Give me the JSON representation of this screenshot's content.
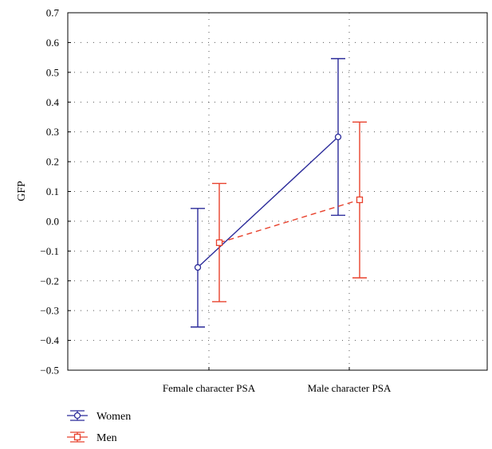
{
  "chart_data": {
    "type": "line",
    "title": "",
    "xlabel": "",
    "ylabel": "GFP",
    "ylim": [
      -0.5,
      0.7
    ],
    "yticks": [
      "0.7",
      "0.6",
      "0.5",
      "0.4",
      "0.3",
      "0.2",
      "0.1",
      "0.0",
      "−0.1",
      "−0.2",
      "−0.3",
      "−0.4",
      "−0.5"
    ],
    "ytick_values": [
      0.7,
      0.6,
      0.5,
      0.4,
      0.3,
      0.2,
      0.1,
      0.0,
      -0.1,
      -0.2,
      -0.3,
      -0.4,
      -0.5
    ],
    "categories": [
      "Female character PSA",
      "Male character PSA"
    ],
    "grid": true,
    "legend_placement": "bottom-left",
    "error_bars": true,
    "series": [
      {
        "name": "Women",
        "values": [
          -0.155,
          0.283
        ],
        "lower": [
          -0.355,
          0.02
        ],
        "upper": [
          0.043,
          0.546
        ],
        "color": "#2b2b9a",
        "marker": "circle",
        "line_style": "solid"
      },
      {
        "name": "Men",
        "values": [
          -0.072,
          0.072
        ],
        "lower": [
          -0.27,
          -0.19
        ],
        "upper": [
          0.127,
          0.333
        ],
        "color": "#e8412c",
        "marker": "square",
        "line_style": "dashed"
      }
    ]
  }
}
